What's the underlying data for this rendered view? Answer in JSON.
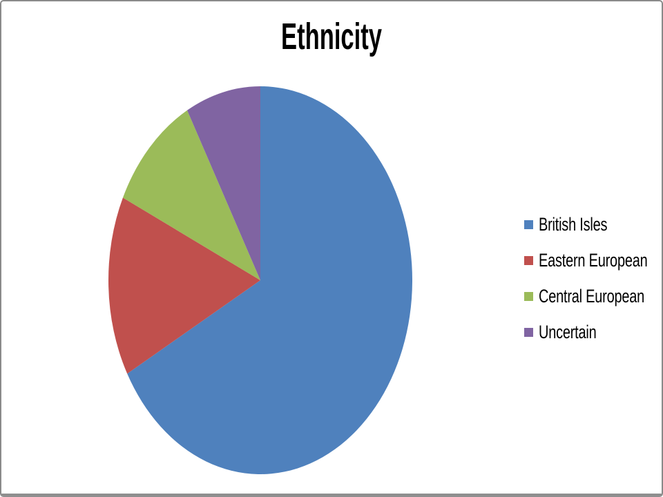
{
  "chart_data": {
    "type": "pie",
    "title": "Ethnicity",
    "categories": [
      "British Isles",
      "Eastern European",
      "Central European",
      "Uncertain"
    ],
    "values": [
      67,
      15,
      10,
      8
    ],
    "unit": "percent_estimated",
    "colors": [
      "#4F81BD",
      "#C0504D",
      "#9BBB59",
      "#8064A2"
    ],
    "start_angle_deg": 0,
    "direction": "clockwise",
    "legend_position": "right",
    "data_labels": false,
    "title_color": "#000000",
    "legend_text_color": "#000000"
  },
  "frame": {
    "border_color": "#8a8a8a",
    "bottom_border_color": "#8f8f8f",
    "background": "#ffffff"
  }
}
